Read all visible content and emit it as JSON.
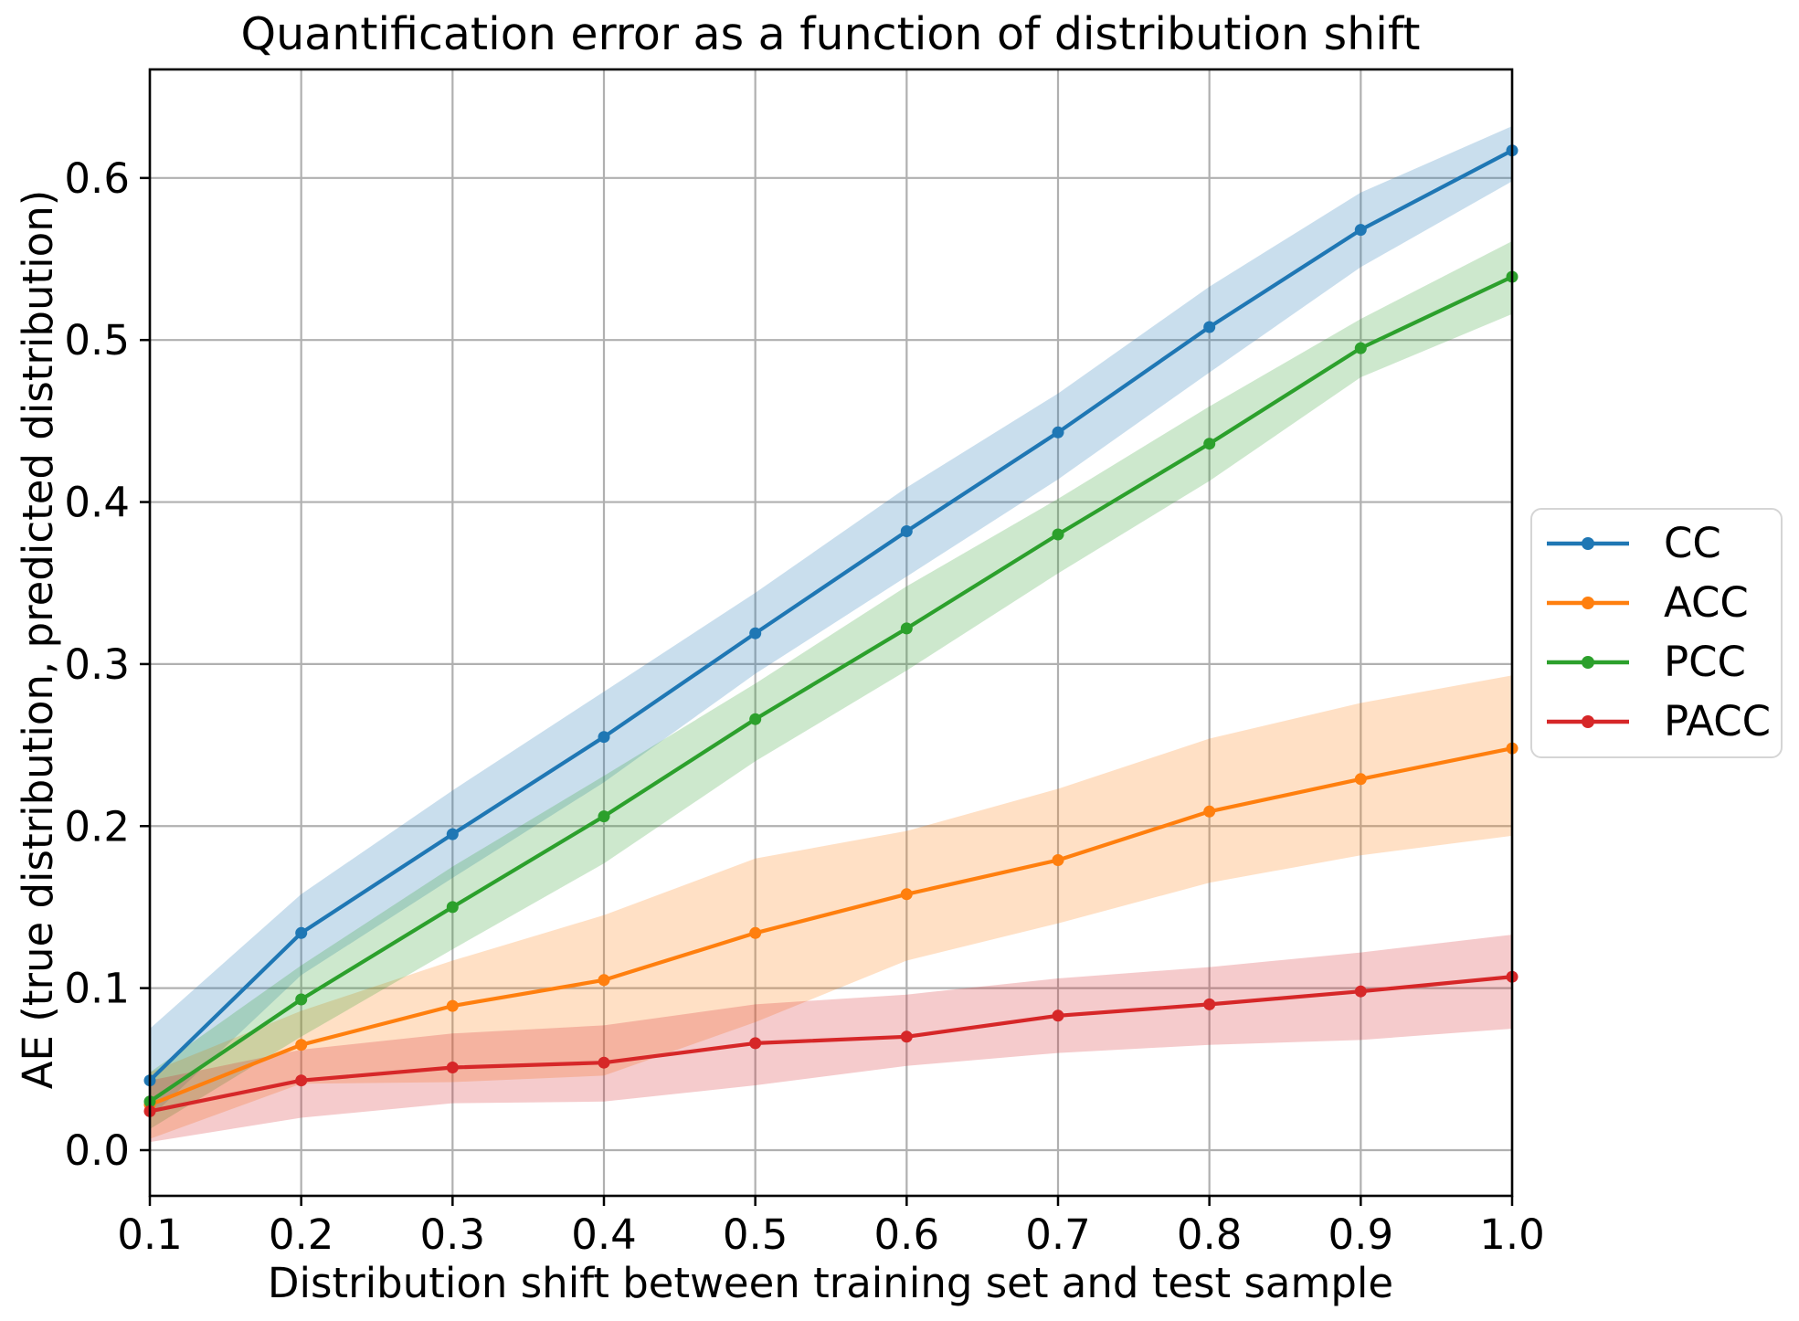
{
  "chart_data": {
    "type": "line",
    "title": "Quantification error as a function of distribution shift",
    "xlabel": "Distribution shift between training set and test sample",
    "ylabel": "AE (true distribution, predicted distribution)",
    "x": [
      0.1,
      0.2,
      0.3,
      0.4,
      0.5,
      0.6,
      0.7,
      0.8,
      0.9,
      1.0
    ],
    "xlim": [
      0.1,
      1.0
    ],
    "ylim": [
      -0.0282,
      0.667
    ],
    "xticks": [
      0.1,
      0.2,
      0.3,
      0.4,
      0.5,
      0.6,
      0.7,
      0.8,
      0.9,
      1.0
    ],
    "yticks": [
      0.0,
      0.1,
      0.2,
      0.3,
      0.4,
      0.5,
      0.6
    ],
    "grid": true,
    "grid_color": "#b0b0b0",
    "background": "#ffffff",
    "text_color": "#000000",
    "band_alpha": 0.24,
    "legend": {
      "position": "outside-right",
      "entries": [
        "CC",
        "ACC",
        "PCC",
        "PACC"
      ]
    },
    "series": [
      {
        "name": "CC",
        "color": "#1f77b4",
        "values": [
          0.043,
          0.134,
          0.195,
          0.255,
          0.319,
          0.382,
          0.443,
          0.508,
          0.568,
          0.617
        ],
        "band_low": [
          0.02,
          0.108,
          0.168,
          0.227,
          0.294,
          0.354,
          0.414,
          0.48,
          0.545,
          0.598
        ],
        "band_high": [
          0.075,
          0.158,
          0.222,
          0.283,
          0.344,
          0.409,
          0.467,
          0.533,
          0.591,
          0.632
        ]
      },
      {
        "name": "ACC",
        "color": "#ff7f0e",
        "values": [
          0.028,
          0.065,
          0.089,
          0.105,
          0.134,
          0.158,
          0.179,
          0.209,
          0.229,
          0.248
        ],
        "band_low": [
          0.007,
          0.041,
          0.042,
          0.046,
          0.079,
          0.117,
          0.14,
          0.165,
          0.182,
          0.194
        ],
        "band_high": [
          0.048,
          0.086,
          0.117,
          0.145,
          0.18,
          0.197,
          0.223,
          0.254,
          0.276,
          0.293
        ]
      },
      {
        "name": "PCC",
        "color": "#2ca02c",
        "values": [
          0.03,
          0.093,
          0.15,
          0.206,
          0.266,
          0.322,
          0.38,
          0.436,
          0.495,
          0.539
        ],
        "band_low": [
          0.013,
          0.07,
          0.124,
          0.177,
          0.24,
          0.296,
          0.356,
          0.413,
          0.477,
          0.516
        ],
        "band_high": [
          0.048,
          0.114,
          0.175,
          0.231,
          0.288,
          0.348,
          0.402,
          0.459,
          0.513,
          0.561
        ]
      },
      {
        "name": "PACC",
        "color": "#d62728",
        "values": [
          0.024,
          0.043,
          0.051,
          0.054,
          0.066,
          0.07,
          0.083,
          0.09,
          0.098,
          0.107
        ],
        "band_low": [
          0.005,
          0.02,
          0.029,
          0.03,
          0.04,
          0.052,
          0.06,
          0.065,
          0.068,
          0.075
        ],
        "band_high": [
          0.043,
          0.062,
          0.072,
          0.077,
          0.09,
          0.096,
          0.106,
          0.113,
          0.122,
          0.133
        ]
      }
    ]
  }
}
